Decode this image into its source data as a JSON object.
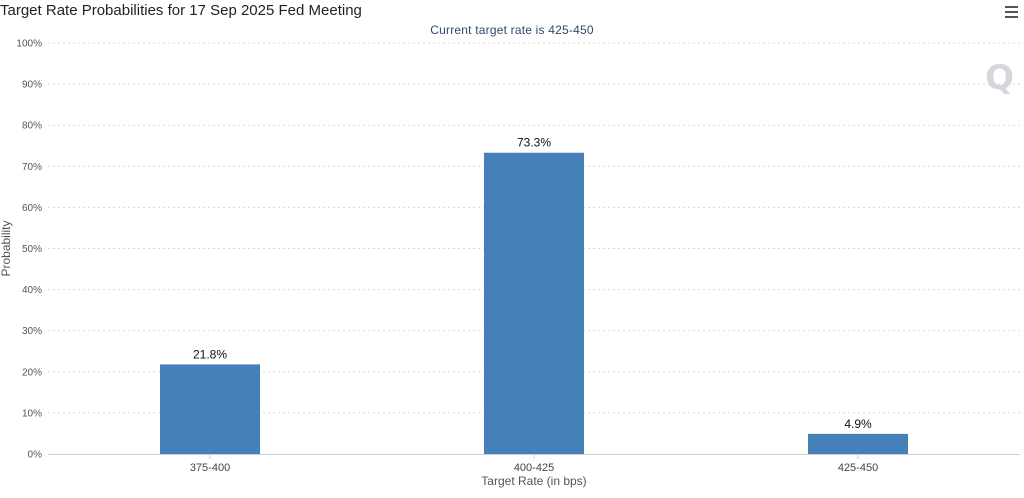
{
  "chart_data": {
    "type": "bar",
    "title": "Target Rate Probabilities for 17 Sep 2025 Fed Meeting",
    "subtitle": "Current target rate is 425-450",
    "xlabel": "Target Rate (in bps)",
    "ylabel": "Probability",
    "categories": [
      "375-400",
      "400-425",
      "425-450"
    ],
    "values": [
      21.8,
      73.3,
      4.9
    ],
    "data_labels": [
      "21.8%",
      "73.3%",
      "4.9%"
    ],
    "ylim": [
      0,
      100
    ],
    "yticks": [
      0,
      10,
      20,
      30,
      40,
      50,
      60,
      70,
      80,
      90,
      100
    ],
    "ytick_labels": [
      "0%",
      "10%",
      "20%",
      "30%",
      "40%",
      "50%",
      "60%",
      "70%",
      "80%",
      "90%",
      "100%"
    ],
    "grid": true,
    "legend": "none",
    "bar_color": "#4680b8",
    "grid_color": "#d8d8d8"
  },
  "watermark": "Q",
  "icons": {
    "menu": "hamburger-menu-icon"
  }
}
